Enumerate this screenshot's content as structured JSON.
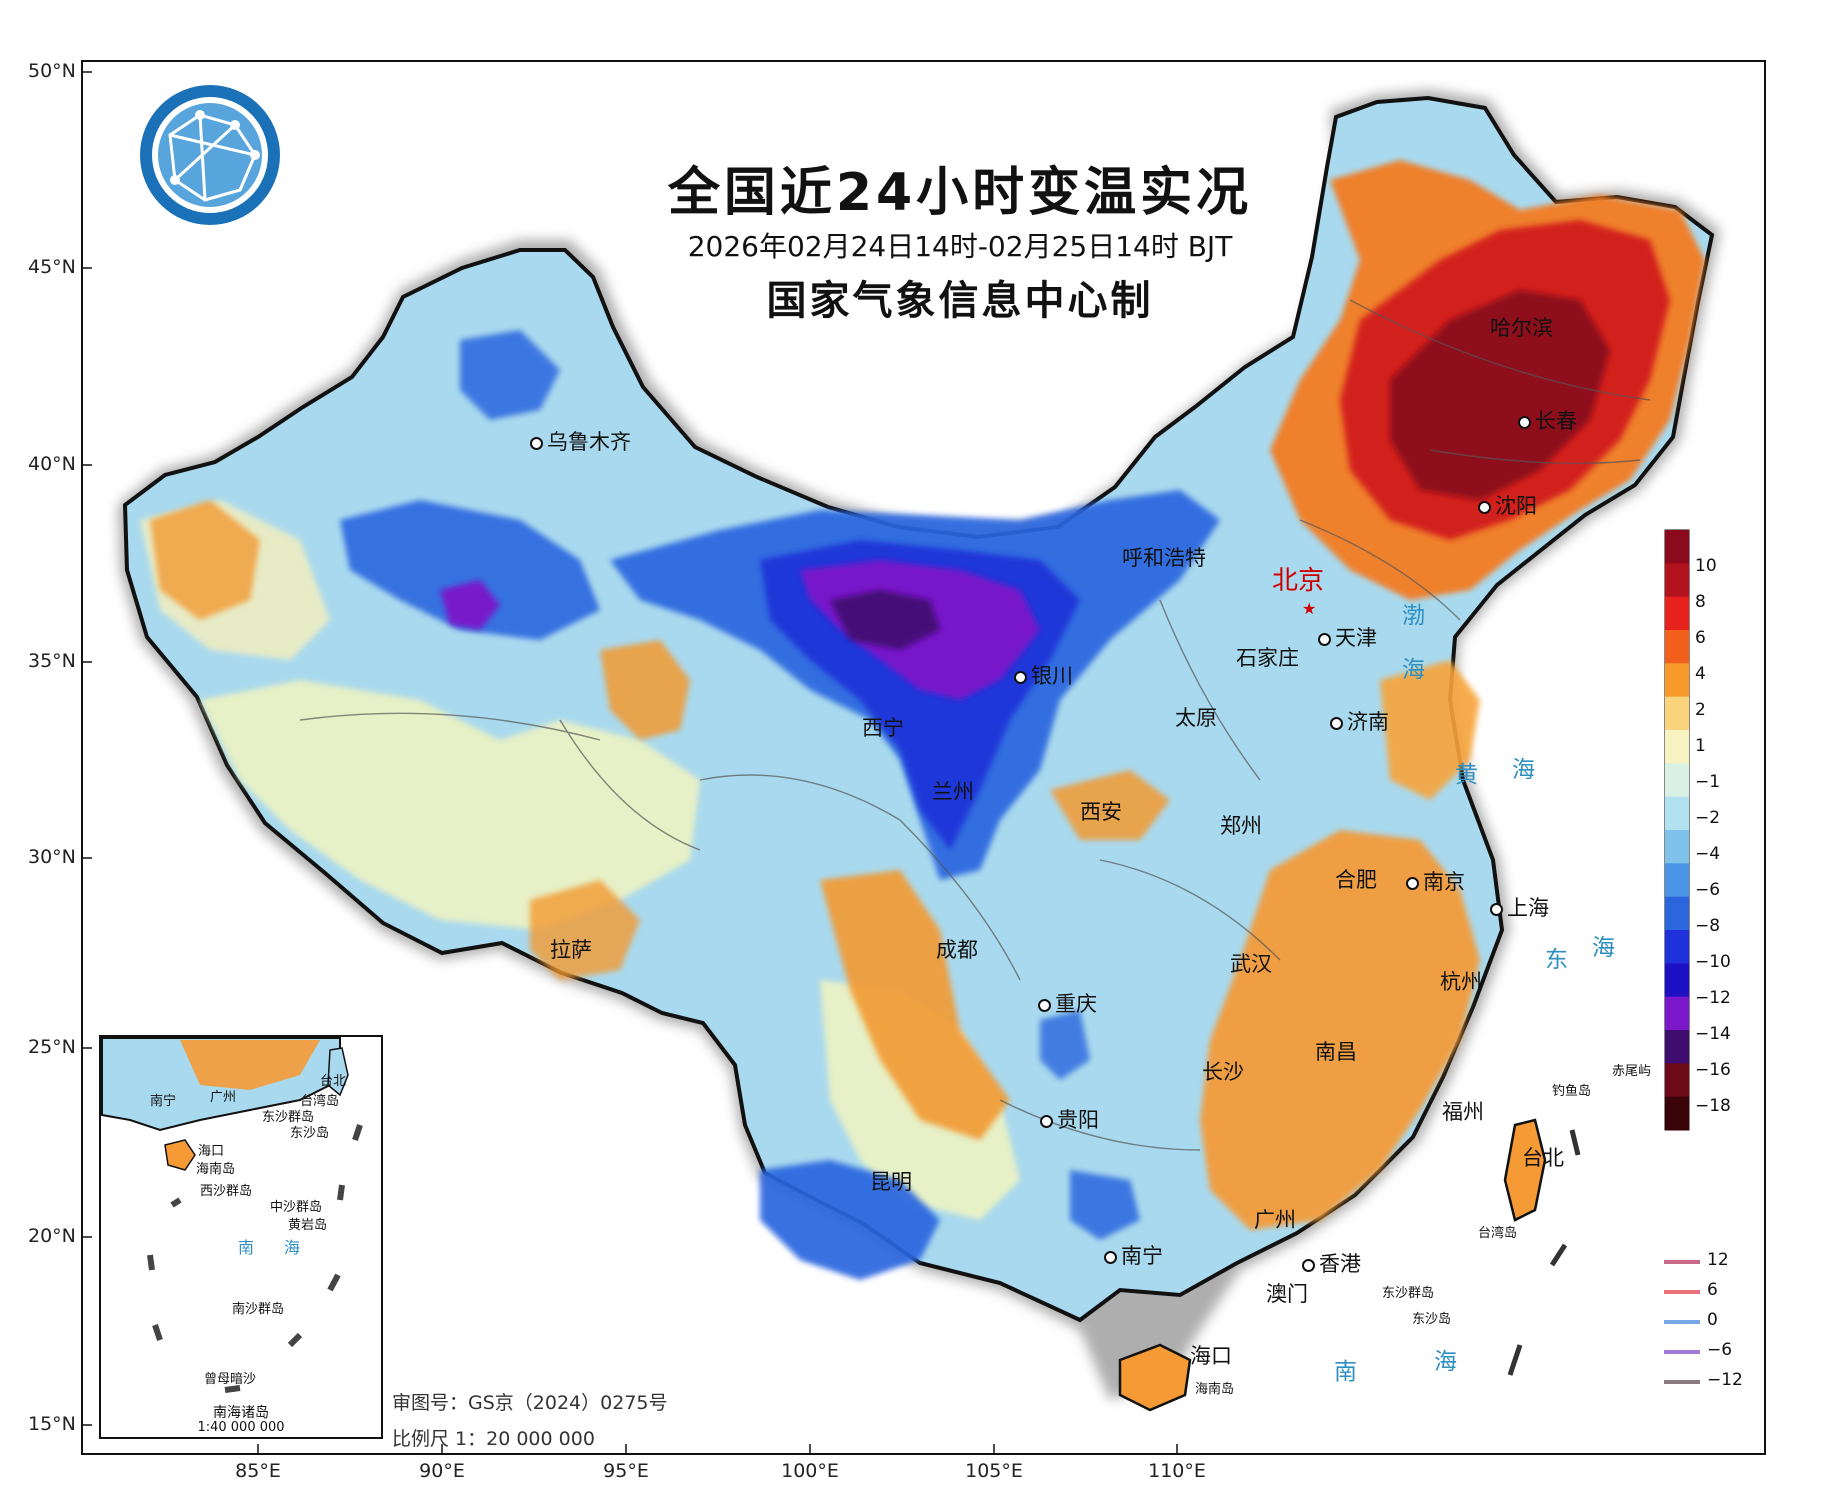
{
  "map": {
    "title": "全国近24小时变温实况",
    "subtitle": "2026年02月24日14时-02月25日14时 BJT",
    "producer": "国家气象信息中心制",
    "lat_labels": [
      "50°N",
      "45°N",
      "40°N",
      "35°N",
      "30°N",
      "25°N",
      "20°N",
      "15°N"
    ],
    "lon_labels": [
      "85°E",
      "90°E",
      "95°E",
      "100°E",
      "105°E",
      "110°E"
    ],
    "capital": "北京",
    "cities": [
      "乌鲁木齐",
      "哈尔滨",
      "长春",
      "沈阳",
      "呼和浩特",
      "天津",
      "石家庄",
      "银川",
      "太原",
      "济南",
      "西宁",
      "兰州",
      "西安",
      "郑州",
      "合肥",
      "南京",
      "上海",
      "拉萨",
      "成都",
      "武汉",
      "杭州",
      "重庆",
      "长沙",
      "南昌",
      "福州",
      "贵阳",
      "台北",
      "昆明",
      "广州",
      "南宁",
      "香港",
      "澳门",
      "海口"
    ],
    "sea_labels": [
      "渤",
      "海",
      "黄",
      "海",
      "东",
      "海",
      "南",
      "海"
    ],
    "islands": [
      "海南岛",
      "东沙群岛",
      "东沙岛",
      "钓鱼岛",
      "赤尾屿",
      "台湾岛"
    ],
    "approval": "审图号：GS京（2024）0275号",
    "scale": "比例尺 1：20 000 000"
  },
  "inset": {
    "title": "南海诸岛",
    "scale": "1:40 000 000",
    "labels": [
      "南宁",
      "广州",
      "台湾岛",
      "台北",
      "东沙群岛",
      "东沙岛",
      "海口",
      "海南岛",
      "西沙群岛",
      "中沙群岛",
      "黄岩岛",
      "南",
      "海",
      "南沙群岛",
      "曾母暗沙"
    ]
  },
  "colorbar": {
    "ticks": [
      "10",
      "8",
      "6",
      "4",
      "2",
      "1",
      "−1",
      "−2",
      "−4",
      "−6",
      "−8",
      "−10",
      "−12",
      "−14",
      "−16",
      "−18"
    ],
    "colors": [
      "#8b0b1c",
      "#b3131f",
      "#e8231e",
      "#f2601c",
      "#f79a2a",
      "#fbd37c",
      "#f6f2c2",
      "#d9f0e4",
      "#b2e1f0",
      "#7fc2ea",
      "#4a95e6",
      "#2b66df",
      "#1f31d8",
      "#1c10c2",
      "#7b18c9",
      "#3f0d6f",
      "#6f0a18",
      "#3a0307"
    ]
  },
  "line_legend": {
    "labels": [
      "12",
      "6",
      "0",
      "−6",
      "−12"
    ],
    "colors": [
      "#c76a85",
      "#e9707a",
      "#78a9e6",
      "#a07ad6",
      "#8a7a80"
    ]
  },
  "logo": "weather-globe-logo"
}
